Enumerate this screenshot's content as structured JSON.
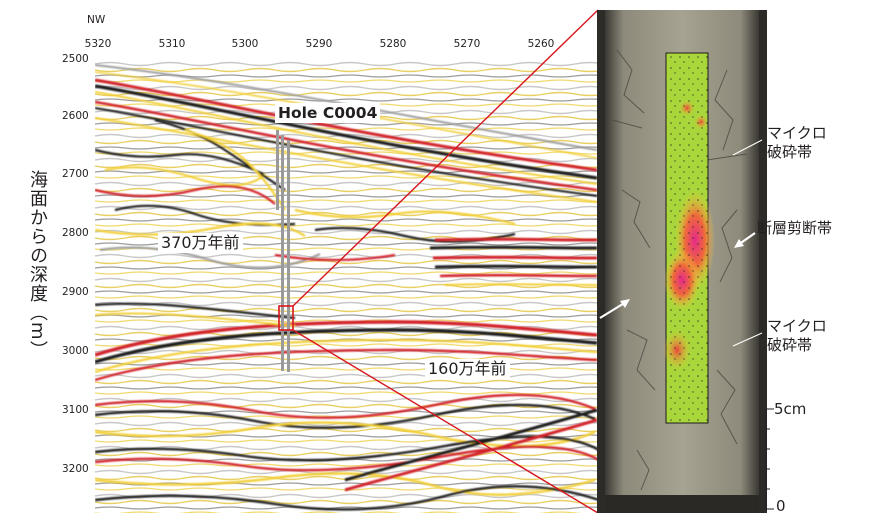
{
  "axes": {
    "direction_label": "NW",
    "x_ticks": [
      "5320",
      "5310",
      "5300",
      "5290",
      "5280",
      "5270",
      "5260"
    ],
    "y_ticks": [
      "2500",
      "2600",
      "2700",
      "2800",
      "2900",
      "3000",
      "3100",
      "3200"
    ],
    "y_label": "海面からの深度（m）"
  },
  "section": {
    "hole_label": "Hole C0004",
    "age_upper": "370万年前",
    "age_lower": "160万年前"
  },
  "core": {
    "labels": {
      "micro_top": "マイクロ\n破砕帯",
      "fault": "断層剪断帯",
      "micro_bottom": "マイクロ\n破砕帯",
      "scale_5cm": "5cm",
      "scale_0": "0"
    }
  },
  "colors": {
    "reflector_red": "#d2232a",
    "reflector_black": "#1a1a1a",
    "reflector_yellow": "#f2cf36",
    "zoom_lines": "#d7161e",
    "core_gray": "#7a7666",
    "core_overlay_green": "#a9d63a"
  }
}
